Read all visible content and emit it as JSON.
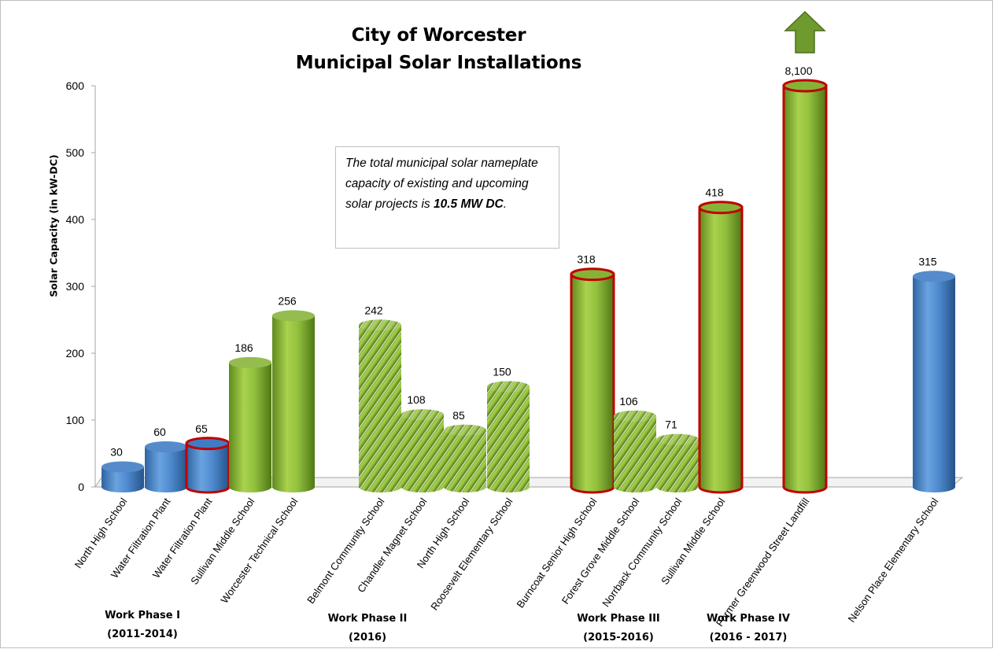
{
  "chart_data": {
    "type": "bar",
    "title": [
      "City of Worcester",
      "Municipal Solar Installations"
    ],
    "ylabel": "Solar Capacity (in kW-DC)",
    "ylim": [
      0,
      600
    ],
    "yticks": [
      "0",
      "100",
      "200",
      "300",
      "400",
      "500",
      "600"
    ],
    "grid": false,
    "categories": [
      "North High School",
      "Water Filtration Plant",
      "Water Filtration Plant",
      "Sullivan Middle School",
      "Worcester Technical School",
      "Belmont Community School",
      "Chandler Magnet School",
      "North High School",
      "Roosevelt Elementary School",
      "Burncoat Senior High School",
      "Forest Grove Middle School",
      "Norrback Community School",
      "Sullivan Middle School",
      "Former Greenwood Street Landfill",
      "Nelson Place Elementary School"
    ],
    "values": [
      30,
      60,
      65,
      186,
      256,
      242,
      108,
      85,
      150,
      318,
      106,
      71,
      418,
      8100,
      315
    ],
    "value_labels": [
      "30",
      "60",
      "65",
      "186",
      "256",
      "242",
      "108",
      "85",
      "150",
      "318",
      "106",
      "71",
      "418",
      "8,100",
      "315"
    ],
    "bar_color": [
      "blue",
      "blue",
      "blue",
      "green",
      "green",
      "green-hatched",
      "green-hatched",
      "green-hatched",
      "green-hatched",
      "green",
      "green-hatched",
      "green-hatched",
      "green",
      "green",
      "blue"
    ],
    "red_outline": [
      false,
      false,
      true,
      false,
      false,
      false,
      false,
      false,
      false,
      true,
      false,
      false,
      true,
      true,
      false
    ],
    "off_scale_arrow": [
      false,
      false,
      false,
      false,
      false,
      false,
      false,
      false,
      false,
      false,
      false,
      false,
      false,
      true,
      false
    ],
    "groups": [
      {
        "name": "Work Phase I",
        "period": "(2011-2014)"
      },
      {
        "name": "Work Phase II",
        "period": "(2016)"
      },
      {
        "name": "Work Phase III",
        "period": "(2015-2016)"
      },
      {
        "name": "Work Phase IV",
        "period": "(2016 - 2017)"
      }
    ],
    "annotation": {
      "text": "The total municipal solar nameplate capacity of existing and upcoming solar projects is",
      "bold": "10.5 MW DC",
      "end": "."
    }
  },
  "colors": {
    "blue": "#4a86c8",
    "green": "#8fba3c",
    "red": "#c00000",
    "arrow": "#6f9a2e"
  }
}
